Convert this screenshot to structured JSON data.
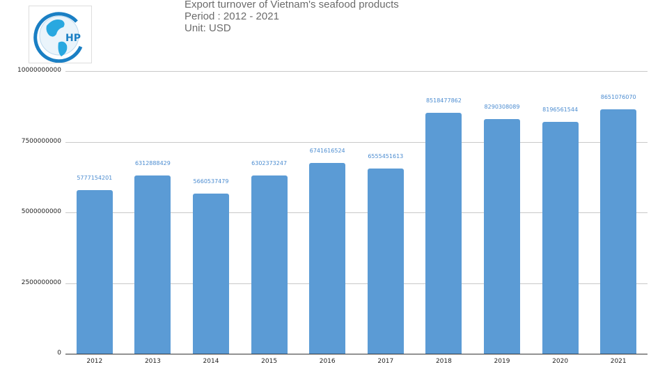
{
  "header": {
    "title": "Export turnover of Vietnam's seafood products",
    "period": "Period : 2012 - 2021",
    "unit": "Unit: USD",
    "logo_text": "HP"
  },
  "colors": {
    "bar": "#5b9bd5",
    "label": "#4a8bd0",
    "grid": "#c8c8c8"
  },
  "chart_data": {
    "type": "bar",
    "title": "Export turnover of Vietnam's seafood products",
    "subtitle": "Period : 2012 - 2021 / Unit: USD",
    "xlabel": "",
    "ylabel": "USD",
    "categories": [
      "2012",
      "2013",
      "2014",
      "2015",
      "2016",
      "2017",
      "2018",
      "2019",
      "2020",
      "2021"
    ],
    "values": [
      5777154201,
      6312888429,
      5660537479,
      6302373247,
      6741616524,
      6555451613,
      8518477862,
      8290308089,
      8196561544,
      8651076070
    ],
    "value_labels": [
      "5777154201",
      "6312888429",
      "5660537479",
      "6302373247",
      "6741616524",
      "6555451613",
      "8518477862",
      "8290308089",
      "8196561544",
      "8651076070"
    ],
    "ylim": [
      0,
      10000000000
    ],
    "yticks": [
      "0",
      "2500000000",
      "5000000000",
      "7500000000",
      "10000000000"
    ],
    "grid": true,
    "legend": null
  }
}
